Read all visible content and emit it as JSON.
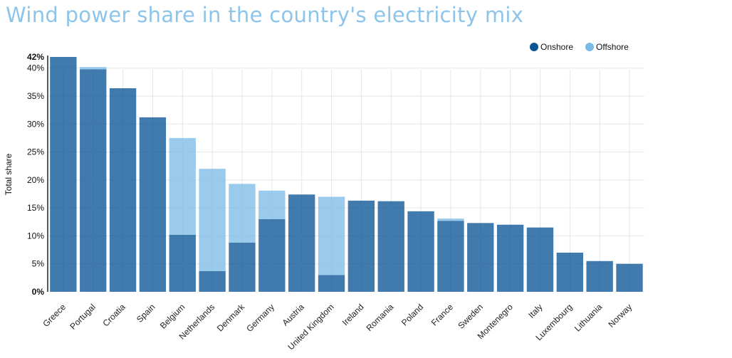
{
  "title": "Wind power share in the country's electricity mix",
  "legend": {
    "onshore": "Onshore",
    "offshore": "Offshore"
  },
  "colors": {
    "onshore": "#0b5596",
    "offshore": "#7ab9e6",
    "title": "#8cc4ea"
  },
  "chart_data": {
    "type": "bar",
    "stacked": true,
    "title": "Wind power share in the country's electricity mix",
    "xlabel": "",
    "ylabel": "Total share",
    "ylim": [
      0,
      42
    ],
    "yticks": [
      "0%",
      "5%",
      "10%",
      "15%",
      "20%",
      "25%",
      "30%",
      "35%",
      "40%",
      "42%"
    ],
    "ytick_values": [
      0,
      5,
      10,
      15,
      20,
      25,
      30,
      35,
      40,
      42
    ],
    "legend_position": "top-right",
    "grid": true,
    "categories": [
      "Greece",
      "Portugal",
      "Croatia",
      "Spain",
      "Belgium",
      "Netherlands",
      "Denmark",
      "Germany",
      "Austria",
      "United Kingdom",
      "Ireland",
      "Romania",
      "Poland",
      "France",
      "Sweden",
      "Montenegro",
      "Italy",
      "Luxembourg",
      "Lithuania",
      "Norway"
    ],
    "series": [
      {
        "name": "Onshore",
        "values": [
          42.0,
          39.8,
          36.4,
          31.2,
          10.2,
          3.7,
          8.8,
          13.0,
          17.4,
          3.0,
          16.3,
          16.2,
          14.4,
          12.7,
          12.3,
          12.0,
          11.5,
          7.0,
          5.5,
          5.0
        ]
      },
      {
        "name": "Offshore",
        "values": [
          0,
          0.4,
          0,
          0,
          17.3,
          18.3,
          10.5,
          5.1,
          0,
          14.0,
          0,
          0,
          0,
          0.4,
          0,
          0,
          0,
          0,
          0,
          0
        ]
      }
    ]
  }
}
